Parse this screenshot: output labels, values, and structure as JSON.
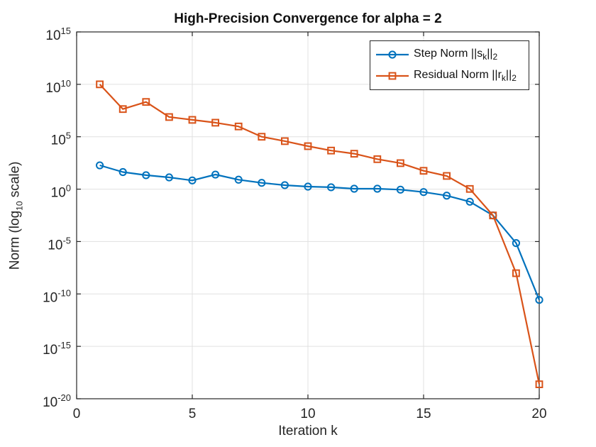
{
  "title": "High-Precision Convergence for alpha = 2",
  "axes": {
    "xlabel": "Iteration k",
    "ylabel": {
      "pre": "Norm (log",
      "sub": "10",
      "post": " scale)"
    }
  },
  "legend": {
    "items": [
      {
        "pre": "Step Norm ||s",
        "sub1": "k",
        "mid": "||",
        "sub2": "2"
      },
      {
        "pre": "Residual Norm ||r",
        "sub1": "k",
        "mid": "||",
        "sub2": "2"
      }
    ]
  },
  "chart_data": {
    "type": "line",
    "title": "High-Precision Convergence for alpha = 2",
    "xlabel": "Iteration k",
    "ylabel": "Norm (log10 scale)",
    "legend_position": "top-right-inside",
    "grid": true,
    "x_axis": {
      "lim": [
        0,
        20
      ],
      "ticks": [
        0,
        5,
        10,
        15,
        20
      ]
    },
    "y_axis": {
      "scale": "log10",
      "lim_exponents": [
        -20,
        15
      ],
      "tick_exponents": [
        15,
        10,
        5,
        0,
        -5,
        -10,
        -15,
        -20
      ]
    },
    "x": [
      1,
      2,
      3,
      4,
      5,
      6,
      7,
      8,
      9,
      10,
      11,
      12,
      13,
      14,
      15,
      16,
      17,
      18,
      19,
      20
    ],
    "series": [
      {
        "id": "step-norm",
        "name": "Step Norm ||s_k||_2",
        "color": "#0072BD",
        "marker": "circle",
        "log10_values": [
          2.27,
          1.63,
          1.33,
          1.12,
          0.83,
          1.39,
          0.9,
          0.6,
          0.38,
          0.24,
          0.18,
          0.04,
          0.04,
          -0.05,
          -0.28,
          -0.62,
          -1.2,
          -2.51,
          -5.15,
          -10.57
        ],
        "values": [
          190,
          43,
          21,
          13,
          6.8,
          25,
          7.9,
          4.0,
          2.4,
          1.7,
          1.5,
          1.1,
          1.1,
          0.89,
          0.52,
          0.24,
          0.063,
          0.0031,
          7.1e-06,
          2.7e-11
        ]
      },
      {
        "id": "residual-norm",
        "name": "Residual Norm ||r_k||_2",
        "color": "#D95319",
        "marker": "square",
        "log10_values": [
          10.0,
          7.64,
          8.32,
          6.88,
          6.61,
          6.34,
          5.98,
          5.0,
          4.58,
          4.1,
          3.68,
          3.38,
          2.86,
          2.48,
          1.75,
          1.26,
          0.02,
          -2.51,
          -8.02,
          -18.62
        ],
        "values": [
          10000000000.0,
          44000000.0,
          210000000.0,
          7600000.0,
          4100000.0,
          2200000.0,
          950000.0,
          100000.0,
          38000.0,
          13000.0,
          4800.0,
          2400.0,
          720.0,
          300.0,
          56,
          18,
          1.05,
          0.0031,
          9.6e-09,
          2.4e-19
        ]
      }
    ],
    "colors": {
      "grid": "#e0e0e0",
      "axis": "#262626",
      "background": "#ffffff"
    }
  }
}
